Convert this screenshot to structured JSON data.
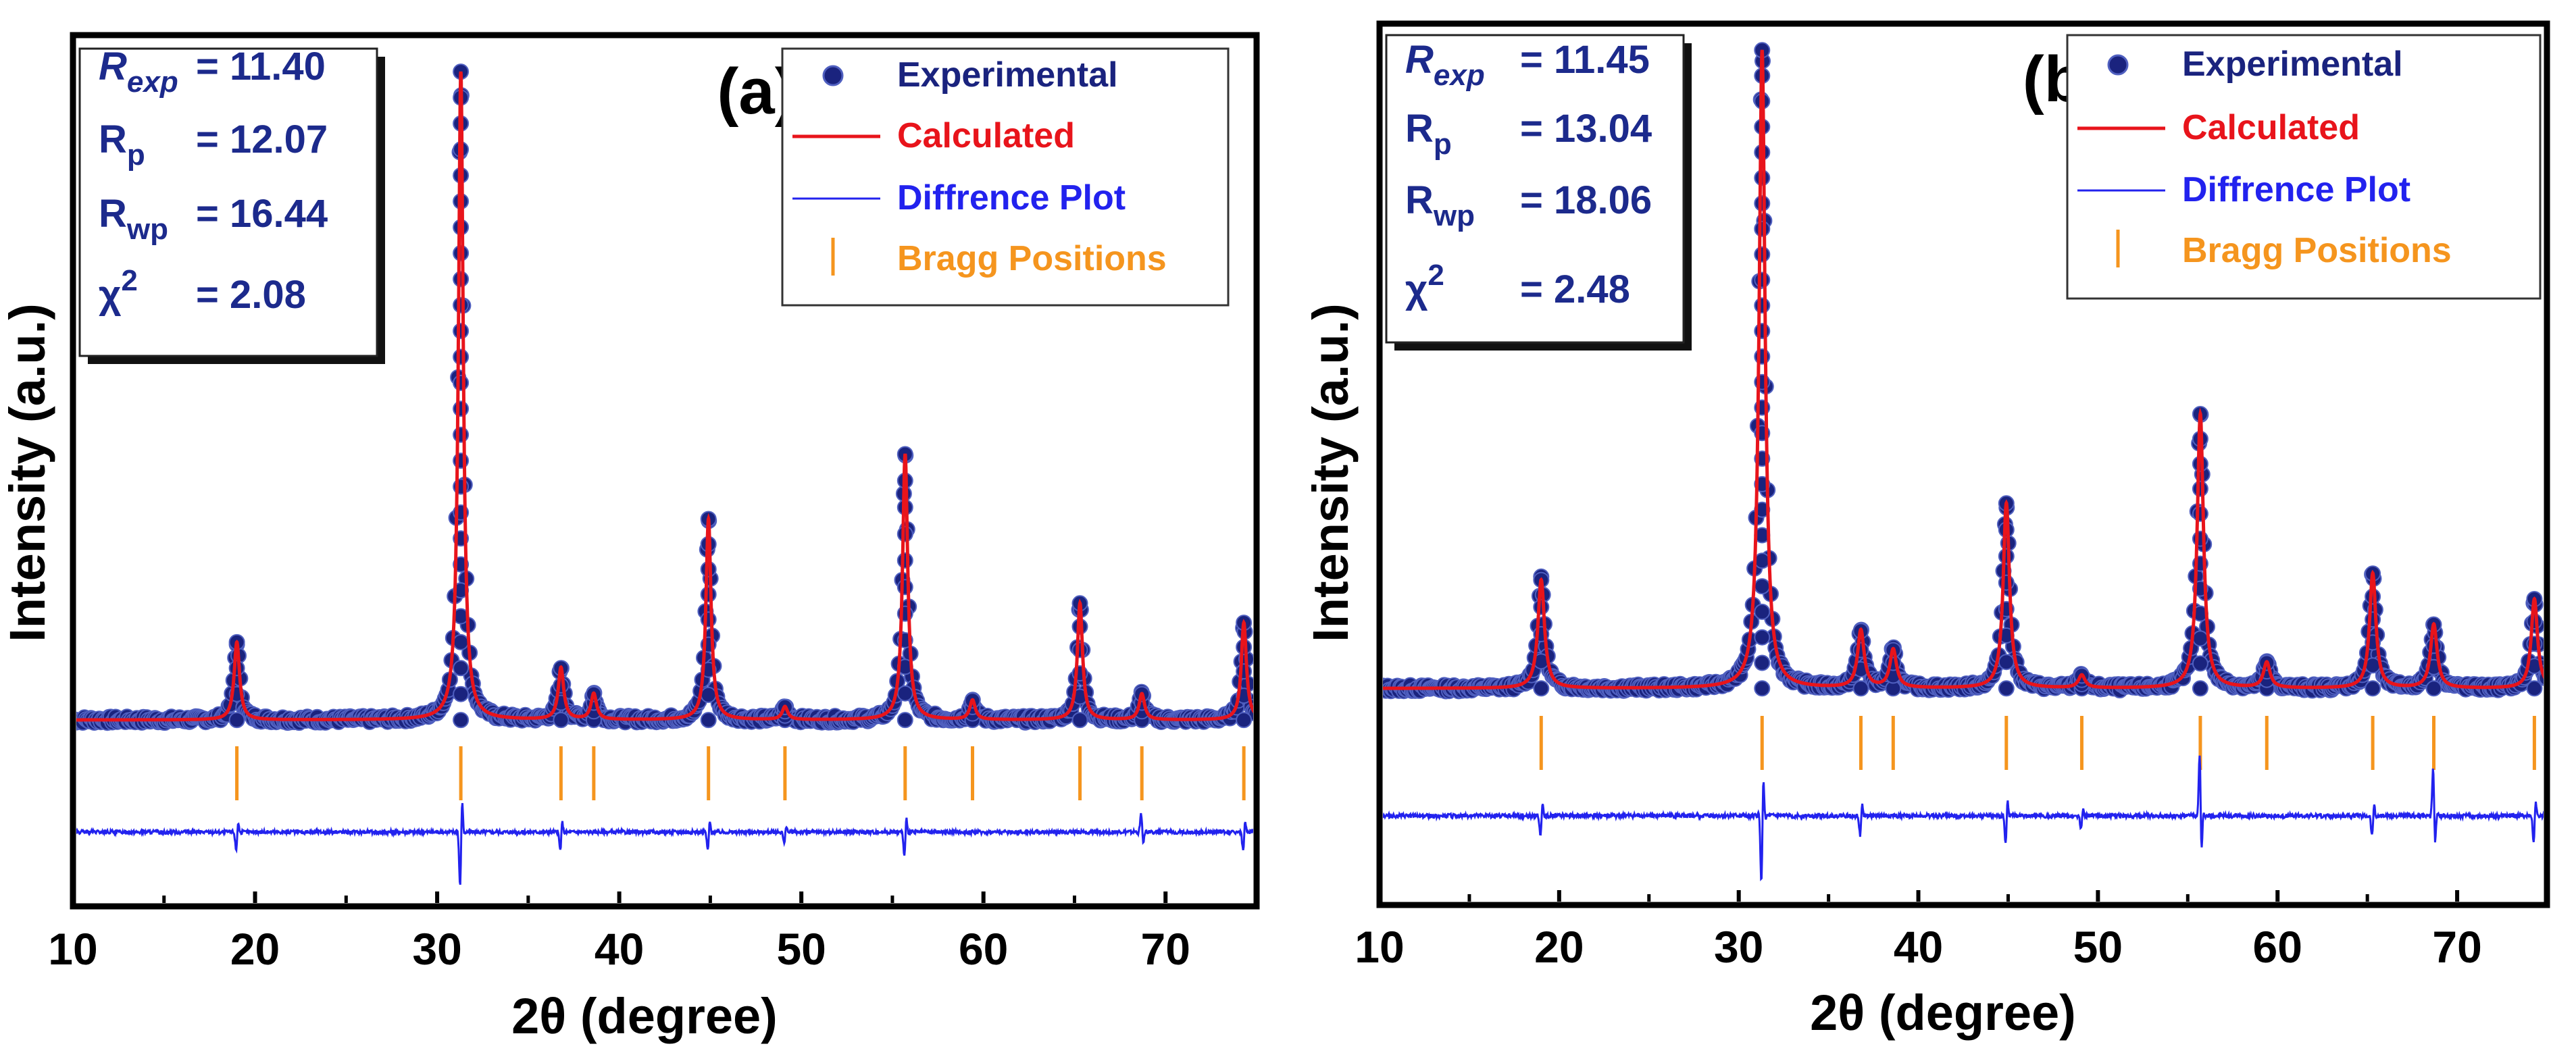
{
  "colors": {
    "experimental": "#1a237e",
    "calculated": "#e8141b",
    "difference": "#2222ee",
    "bragg": "#f5951e",
    "stats_text": "#1c2a8c",
    "axis": "#000000"
  },
  "chart_data": [
    {
      "type": "line",
      "panel_label": "(a)",
      "xlabel": "2θ (degree)",
      "ylabel": "Intensity (a.u.)",
      "xlim": [
        10,
        75
      ],
      "x_ticks": [
        "10",
        "20",
        "30",
        "40",
        "50",
        "60",
        "70"
      ],
      "x_tick_values": [
        10,
        20,
        30,
        40,
        50,
        60,
        70
      ],
      "x_minor_tick_values": [
        15,
        25,
        35,
        45,
        55,
        65
      ],
      "stats": [
        {
          "main": "R",
          "sub": "exp",
          "sup": "",
          "eq": "= 11.40",
          "italic": true
        },
        {
          "main": "R",
          "sub": "p",
          "sup": "",
          "eq": "= 12.07",
          "italic": false
        },
        {
          "main": "R",
          "sub": "wp",
          "sup": "",
          "eq": "= 16.44",
          "italic": false
        },
        {
          "main": "χ",
          "sub": "",
          "sup": "2",
          "eq": "= 2.08",
          "italic": false
        }
      ],
      "legend": [
        "Experimental",
        "Calculated",
        "Diffrence Plot",
        "Bragg Positions"
      ],
      "baseline": 0.2,
      "peaks": [
        {
          "x": 19.0,
          "height": 12,
          "width": 0.18
        },
        {
          "x": 31.3,
          "height": 100,
          "width": 0.16
        },
        {
          "x": 36.8,
          "height": 8,
          "width": 0.18
        },
        {
          "x": 38.6,
          "height": 4,
          "width": 0.18
        },
        {
          "x": 44.9,
          "height": 31,
          "width": 0.17
        },
        {
          "x": 49.1,
          "height": 2,
          "width": 0.18
        },
        {
          "x": 55.7,
          "height": 41,
          "width": 0.17
        },
        {
          "x": 59.4,
          "height": 3,
          "width": 0.18
        },
        {
          "x": 65.3,
          "height": 18,
          "width": 0.17
        },
        {
          "x": 68.7,
          "height": 4,
          "width": 0.18
        },
        {
          "x": 74.3,
          "height": 15,
          "width": 0.17
        }
      ],
      "bragg_positions": [
        19.0,
        31.3,
        36.8,
        38.6,
        44.9,
        49.1,
        55.7,
        59.4,
        65.3,
        68.7,
        74.3
      ],
      "difference": [
        {
          "x": 19.0,
          "amp": 3
        },
        {
          "x": 31.3,
          "amp": 9
        },
        {
          "x": 36.8,
          "amp": 3
        },
        {
          "x": 44.9,
          "amp": 3
        },
        {
          "x": 49.1,
          "amp": 2
        },
        {
          "x": 55.7,
          "amp": 4
        },
        {
          "x": 68.7,
          "amp": -3
        },
        {
          "x": 74.3,
          "amp": 3
        }
      ]
    },
    {
      "type": "line",
      "panel_label": "(b)",
      "xlabel": "2θ (degree)",
      "ylabel": "Intensity (a.u.)",
      "xlim": [
        10,
        75
      ],
      "x_ticks": [
        "10",
        "20",
        "30",
        "40",
        "50",
        "60",
        "70"
      ],
      "x_tick_values": [
        10,
        20,
        30,
        40,
        50,
        60,
        70
      ],
      "x_minor_tick_values": [
        15,
        25,
        35,
        45,
        55,
        65
      ],
      "stats": [
        {
          "main": "R",
          "sub": "exp",
          "sup": "",
          "eq": "= 11.45",
          "italic": true
        },
        {
          "main": "R",
          "sub": "p",
          "sup": "",
          "eq": "= 13.04",
          "italic": false
        },
        {
          "main": "R",
          "sub": "wp",
          "sup": "",
          "eq": "= 18.06",
          "italic": false
        },
        {
          "main": "χ",
          "sub": "",
          "sup": "2",
          "eq": "= 2.48",
          "italic": false
        }
      ],
      "legend": [
        "Experimental",
        "Calculated",
        "Diffrence Plot",
        "Bragg Positions"
      ],
      "baseline": 0.6,
      "peaks": [
        {
          "x": 19.0,
          "height": 17,
          "width": 0.22
        },
        {
          "x": 31.3,
          "height": 100,
          "width": 0.2
        },
        {
          "x": 36.8,
          "height": 9,
          "width": 0.22
        },
        {
          "x": 38.6,
          "height": 6,
          "width": 0.22
        },
        {
          "x": 44.9,
          "height": 29,
          "width": 0.21
        },
        {
          "x": 49.1,
          "height": 2,
          "width": 0.22
        },
        {
          "x": 55.7,
          "height": 43,
          "width": 0.21
        },
        {
          "x": 59.4,
          "height": 4,
          "width": 0.22
        },
        {
          "x": 65.3,
          "height": 18,
          "width": 0.21
        },
        {
          "x": 68.7,
          "height": 10,
          "width": 0.22
        },
        {
          "x": 74.3,
          "height": 14,
          "width": 0.21
        }
      ],
      "bragg_positions": [
        19.0,
        31.3,
        36.8,
        38.6,
        44.9,
        49.1,
        55.7,
        59.4,
        65.3,
        68.7,
        74.3
      ],
      "difference": [
        {
          "x": 19.0,
          "amp": 3
        },
        {
          "x": 31.3,
          "amp": 10
        },
        {
          "x": 36.8,
          "amp": 3
        },
        {
          "x": 44.9,
          "amp": 4
        },
        {
          "x": 49.1,
          "amp": 2
        },
        {
          "x": 55.7,
          "amp": -9
        },
        {
          "x": 65.3,
          "amp": 3
        },
        {
          "x": 68.7,
          "amp": -7
        },
        {
          "x": 74.3,
          "amp": 4
        }
      ]
    }
  ]
}
